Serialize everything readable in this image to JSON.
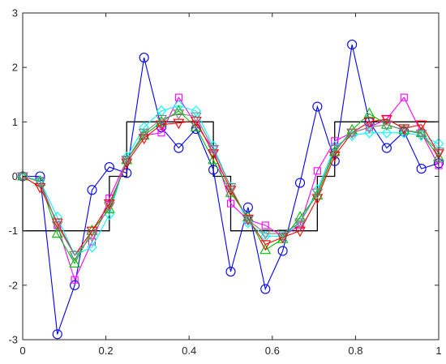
{
  "chart_data": {
    "type": "line",
    "title": "",
    "xlabel": "",
    "ylabel": "",
    "xlim": [
      0,
      1
    ],
    "ylim": [
      -3,
      3
    ],
    "xticks": [
      0,
      0.2,
      0.4,
      0.6,
      0.8,
      1
    ],
    "yticks": [
      -3,
      -2,
      -1,
      0,
      1,
      2,
      3
    ],
    "xtick_labels": [
      "0",
      "0.2",
      "0.4",
      "0.6",
      "0.8",
      "1"
    ],
    "ytick_labels": [
      "-3",
      "-2",
      "-1",
      "0",
      "1",
      "2",
      "3"
    ],
    "grid": false,
    "legend": "none",
    "square_wave": {
      "color": "#000000",
      "x": [
        0,
        0,
        0.2083,
        0.2083,
        0.25,
        0.25,
        0.4583,
        0.4583,
        0.5,
        0.5,
        0.7083,
        0.7083,
        0.75,
        0.75,
        1
      ],
      "y": [
        0,
        -1,
        -1,
        0,
        0,
        1,
        1,
        0,
        0,
        -1,
        -1,
        0,
        0,
        1,
        1
      ]
    },
    "x": [
      0,
      0.0417,
      0.0833,
      0.125,
      0.1667,
      0.2083,
      0.25,
      0.2917,
      0.3333,
      0.375,
      0.4167,
      0.4583,
      0.5,
      0.5417,
      0.5833,
      0.625,
      0.6667,
      0.7083,
      0.75,
      0.7917,
      0.8333,
      0.875,
      0.9167,
      0.9583,
      1.0
    ],
    "series": [
      {
        "color": "#0000ff",
        "marker": "circle",
        "values": [
          0,
          0,
          -2.9,
          -2.0,
          -0.25,
          0.17,
          0.06,
          2.18,
          0.9,
          0.52,
          0.87,
          0.12,
          -1.75,
          -0.57,
          -2.07,
          -1.37,
          -0.12,
          1.28,
          0.28,
          2.42,
          1.0,
          0.52,
          0.82,
          0.14,
          0.24
        ]
      },
      {
        "color": "#ff00ff",
        "marker": "square",
        "values": [
          0,
          -0.08,
          -0.9,
          -1.9,
          -1.2,
          -0.4,
          0.3,
          0.75,
          0.8,
          1.45,
          0.95,
          0.5,
          -0.5,
          -0.8,
          -0.9,
          -1.1,
          -0.9,
          0.1,
          0.65,
          0.8,
          0.9,
          1.05,
          1.45,
          0.8,
          0.2
        ]
      },
      {
        "color": "#00ffff",
        "marker": "diamond",
        "values": [
          0,
          -0.08,
          -0.75,
          -1.45,
          -1.3,
          -0.7,
          0.35,
          0.9,
          1.2,
          1.3,
          1.2,
          0.55,
          -0.2,
          -0.85,
          -1.1,
          -1.1,
          -0.85,
          -0.25,
          0.55,
          0.75,
          0.8,
          0.8,
          0.8,
          0.75,
          0.6
        ]
      },
      {
        "color": "#00c000",
        "marker": "triangle-up",
        "values": [
          0,
          -0.1,
          -1.05,
          -1.6,
          -1.0,
          -0.6,
          0.3,
          0.75,
          1.0,
          1.2,
          0.9,
          0.3,
          -0.3,
          -0.75,
          -1.35,
          -1.15,
          -0.75,
          -0.35,
          0.45,
          0.85,
          1.15,
          0.95,
          0.85,
          0.8,
          0.35
        ]
      },
      {
        "color": "#ff0000",
        "marker": "triangle-down",
        "values": [
          0,
          -0.2,
          -0.85,
          -1.45,
          -1.0,
          -0.5,
          0.25,
          0.7,
          0.95,
          0.98,
          1.02,
          0.42,
          -0.25,
          -0.78,
          -1.25,
          -1.12,
          -1.0,
          -0.4,
          0.38,
          0.8,
          1.0,
          1.05,
          0.88,
          0.95,
          0.42
        ]
      },
      {
        "color": "#808080",
        "marker": "triangle-down",
        "values": [
          0,
          -0.1,
          -0.9,
          -1.45,
          -1.1,
          -0.55,
          0.3,
          0.8,
          1.05,
          1.15,
          1.1,
          0.5,
          -0.2,
          -0.8,
          -1.05,
          -1.05,
          -0.85,
          -0.3,
          0.5,
          0.8,
          0.9,
          0.95,
          0.85,
          0.78,
          0.45
        ]
      }
    ]
  }
}
